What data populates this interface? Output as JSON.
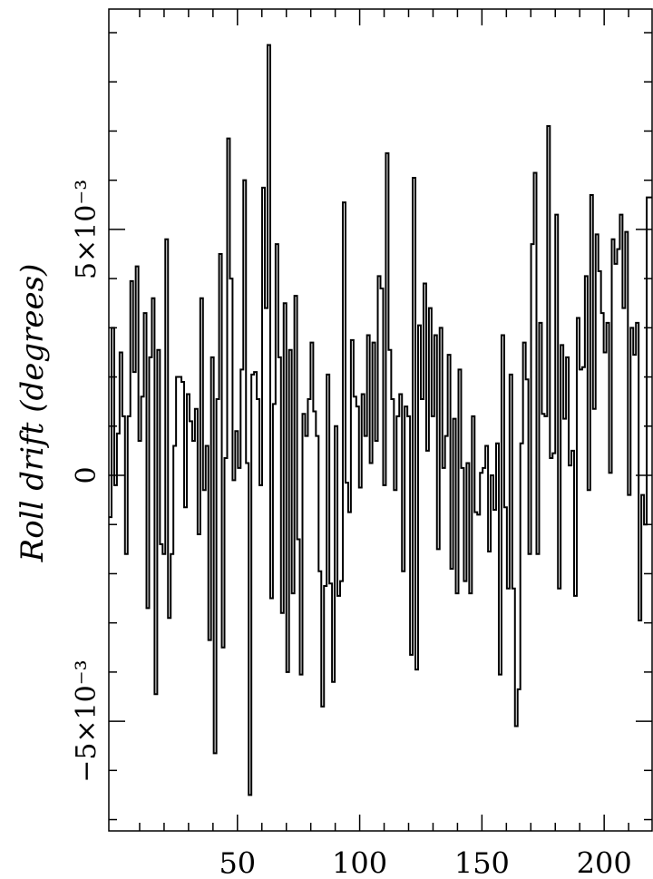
{
  "chart_data": {
    "type": "step",
    "y_label": "Roll drift (degrees)",
    "xlim": [
      -2.6,
      219.6
    ],
    "xticks": [
      50,
      100,
      150,
      200
    ],
    "xminorticks": [
      10,
      20,
      30,
      40,
      60,
      70,
      80,
      90,
      110,
      120,
      130,
      140,
      160,
      170,
      180,
      190,
      210
    ],
    "ylim": [
      -0.00723,
      0.00948
    ],
    "yticks": [
      {
        "value": -0.005,
        "label": "−5×10⁻³"
      },
      0,
      {
        "value": 0.005,
        "label": "5×10⁻³"
      }
    ],
    "yminorticks": [
      -0.007,
      -0.006,
      -0.004,
      -0.003,
      -0.002,
      -0.001,
      0.001,
      0.002,
      0.003,
      0.004,
      0.006,
      0.007,
      0.008,
      0.009
    ],
    "color": "#000000",
    "x": [
      -2.6,
      -1.5,
      -0.4,
      0.7,
      1.8,
      2.9,
      4,
      5.1,
      6.2,
      7.3,
      8.4,
      9.5,
      10.6,
      11.7,
      12.8,
      13.9,
      15,
      16.1,
      17.2,
      18.3,
      19.4,
      20.5,
      21.6,
      22.7,
      23.8,
      24.9,
      26,
      27.1,
      28.2,
      29.3,
      30.4,
      31.5,
      32.6,
      33.7,
      34.8,
      35.9,
      37,
      38.1,
      39.2,
      40.3,
      41.4,
      42.5,
      43.6,
      44.7,
      45.8,
      46.9,
      48,
      49.1,
      50.2,
      51.3,
      52.4,
      53.5,
      54.6,
      55.7,
      56.8,
      57.9,
      59,
      60.1,
      61.2,
      62.3,
      63.4,
      64.5,
      65.6,
      66.7,
      67.8,
      68.9,
      70,
      71.1,
      72.2,
      73.3,
      74.4,
      75.5,
      76.6,
      77.7,
      78.8,
      79.9,
      81,
      82.1,
      83.2,
      84.3,
      85.4,
      86.5,
      87.6,
      88.7,
      89.8,
      90.9,
      92,
      93.1,
      94.2,
      95.3,
      96.4,
      97.5,
      98.6,
      99.7,
      100.8,
      101.9,
      103,
      104.1,
      105.2,
      106.3,
      107.4,
      108.5,
      109.6,
      110.7,
      111.8,
      112.9,
      114,
      115.1,
      116.2,
      117.3,
      118.4,
      119.5,
      120.6,
      121.7,
      122.8,
      123.9,
      125,
      126.1,
      127.2,
      128.3,
      129.4,
      130.5,
      131.6,
      132.7,
      133.8,
      134.9,
      136,
      137.1,
      138.2,
      139.3,
      140.4,
      141.5,
      142.6,
      143.7,
      144.8,
      145.9,
      147,
      148.1,
      149.2,
      150.3,
      151.4,
      152.5,
      153.6,
      154.7,
      155.8,
      156.9,
      158,
      159.1,
      160.2,
      161.3,
      162.4,
      163.5,
      164.6,
      165.7,
      166.8,
      167.9,
      169,
      170.1,
      171.2,
      172.3,
      173.4,
      174.5,
      175.6,
      176.7,
      177.8,
      178.9,
      180,
      181.1,
      182.2,
      183.3,
      184.4,
      185.5,
      186.6,
      187.7,
      188.8,
      189.9,
      191,
      192.1,
      193.2,
      194.3,
      195.4,
      196.5,
      197.6,
      198.7,
      199.8,
      200.9,
      202,
      203.1,
      204.2,
      205.3,
      206.4,
      207.5,
      208.6,
      209.7,
      210.8,
      211.9,
      213,
      214.1,
      215.2,
      216.3,
      217.4
    ],
    "values": [
      -0.00085,
      0.003,
      -0.0002,
      0.00085,
      0.0025,
      0.0012,
      -0.0016,
      0.0012,
      0.00395,
      0.0021,
      0.00425,
      0.0007,
      0.0016,
      0.0033,
      -0.0027,
      0.0024,
      0.0036,
      -0.00445,
      0.00255,
      -0.0014,
      -0.0016,
      0.0048,
      -0.0029,
      -0.0016,
      0.0006,
      0.002,
      0.002,
      0.0019,
      -0.00065,
      0.00165,
      0.0011,
      0.0007,
      0.00135,
      -0.0012,
      0.0036,
      -0.0003,
      0.0006,
      -0.00335,
      0.0024,
      -0.00565,
      0.00155,
      0.0045,
      -0.0035,
      0.00035,
      0.00685,
      0.004,
      -0.0001,
      0.0009,
      0.00015,
      0.00215,
      0.006,
      0.00025,
      -0.0065,
      0.00205,
      0.0021,
      0.00155,
      -0.0002,
      0.00585,
      0.0034,
      0.00875,
      -0.0025,
      0.00145,
      0.0047,
      0.0024,
      -0.0028,
      0.0035,
      -0.004,
      0.00255,
      -0.0024,
      0.00365,
      -0.0013,
      -0.00405,
      0.00125,
      0.0008,
      0.00155,
      0.0027,
      0.0013,
      0.0008,
      -0.00195,
      -0.0047,
      -0.00225,
      0.00205,
      -0.0022,
      -0.0042,
      0.001,
      -0.00245,
      -0.00215,
      0.00555,
      -0.00015,
      -0.00075,
      0.00275,
      0.0016,
      0.0014,
      -0.00025,
      0.00165,
      0.0008,
      0.00285,
      0.00025,
      0.0027,
      0.0007,
      0.00405,
      0.0038,
      -0.0002,
      0.00655,
      0.00255,
      0.00155,
      -0.0003,
      0.0012,
      0.00165,
      -0.00195,
      0.0014,
      0.0012,
      -0.00365,
      0.00605,
      -0.00395,
      0.00305,
      0.00155,
      0.0039,
      0.0005,
      0.0034,
      0.0012,
      0.00285,
      -0.0015,
      0.003,
      0.00015,
      0.0008,
      0.00245,
      -0.0019,
      0.00115,
      -0.0024,
      0.00215,
      0.00015,
      -0.00215,
      0.00025,
      -0.0024,
      0.0012,
      -0.00075,
      -0.0008,
      5e-05,
      0.00015,
      0.0006,
      -0.00155,
      0,
      -0.0007,
      0.00065,
      -0.00405,
      0.00285,
      -0.00065,
      -0.0023,
      0.00205,
      -0.0023,
      -0.0051,
      -0.00435,
      0.00065,
      0.0027,
      0.00195,
      -0.0016,
      0.0047,
      0.00615,
      -0.0016,
      0.0031,
      0.00125,
      0.0012,
      0.0071,
      0.00035,
      0.00045,
      0.0053,
      -0.0023,
      0.00265,
      0.00115,
      0.0024,
      0.0002,
      0.0005,
      -0.00245,
      0.0032,
      0.00215,
      0.0022,
      0.00405,
      -0.0003,
      0.0057,
      0.00135,
      0.0049,
      0.00415,
      0.0033,
      0.0025,
      0.0031,
      5e-05,
      0.0048,
      0.0043,
      0.0046,
      0.0053,
      0.0034,
      0.00495,
      -0.0004,
      0.003,
      0.00245,
      0.0031,
      -0.00295,
      -0.0004,
      -0.001,
      0.00565
    ]
  }
}
